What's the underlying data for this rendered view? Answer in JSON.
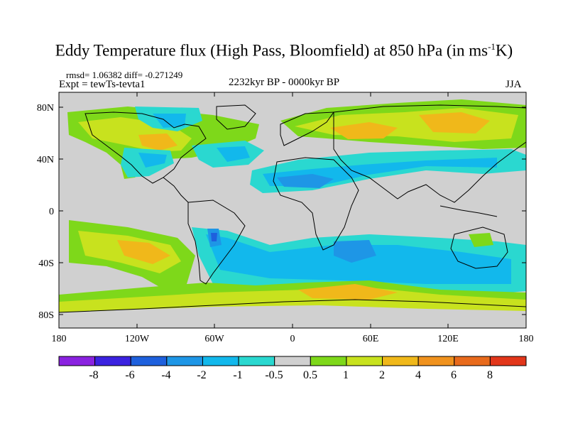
{
  "map": {
    "title_main": "Eddy Temperature flux (High Pass, Bloomfield) at 850 hPa (in ms",
    "title_sup": "-1",
    "title_end": "K)",
    "stats": "rmsd= 1.06382 diff= -0.271249",
    "experiment": "Expt = tewTs-tevta1",
    "period": "2232kyr BP - 0000kyr BP",
    "season": "JJA",
    "lat_ticks": [
      "80N",
      "40N",
      "0",
      "40S",
      "80S"
    ],
    "lon_ticks": [
      "180",
      "120W",
      "60W",
      "0",
      "60E",
      "120E",
      "180"
    ]
  },
  "colorbar": {
    "labels": [
      "-8",
      "-6",
      "-4",
      "-2",
      "-1",
      "-0.5",
      "0.5",
      "1",
      "2",
      "4",
      "6",
      "8"
    ],
    "colors": [
      "#8a22e0",
      "#3b22e0",
      "#1e60dd",
      "#1e96e6",
      "#12b8ec",
      "#2ad8d0",
      "#d0d0d0",
      "#7ed81a",
      "#c8e21e",
      "#f0b81a",
      "#f0921e",
      "#e86a1c",
      "#e2361a"
    ]
  },
  "palette": {
    "land_fill": "#d0d0d0",
    "coast": "#000000"
  }
}
